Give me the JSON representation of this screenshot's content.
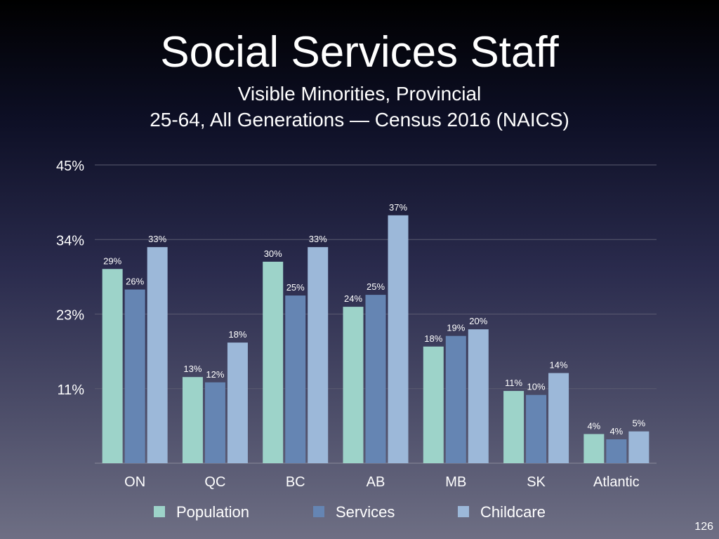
{
  "slide_number": "126",
  "chart_data": {
    "type": "bar",
    "title": "Social Services Staff",
    "subtitle_lines": [
      "Visible Minorities, Provincial",
      "25-64, All Generations — Census 2016 (NAICS)"
    ],
    "xlabel": "",
    "ylabel": "",
    "ylim": [
      0,
      45
    ],
    "yticks": [
      11.25,
      22.5,
      33.75,
      45
    ],
    "ytick_labels": [
      "11%",
      "23%",
      "34%",
      "45%"
    ],
    "grid": true,
    "legend_position": "bottom",
    "categories": [
      "ON",
      "QC",
      "BC",
      "AB",
      "MB",
      "SK",
      "Atlantic"
    ],
    "series": [
      {
        "name": "Population",
        "color": "#9dd3c9",
        "values": [
          29.3,
          13.0,
          30.4,
          23.6,
          17.6,
          10.9,
          4.4
        ],
        "labels": [
          "29%",
          "13%",
          "30%",
          "24%",
          "18%",
          "11%",
          "4%"
        ]
      },
      {
        "name": "Services",
        "color": "#6585b3",
        "values": [
          26.2,
          12.2,
          25.3,
          25.4,
          19.2,
          10.3,
          3.6
        ],
        "labels": [
          "26%",
          "12%",
          "25%",
          "25%",
          "19%",
          "10%",
          "4%"
        ]
      },
      {
        "name": "Childcare",
        "color": "#9cb8d9",
        "values": [
          32.6,
          18.2,
          32.6,
          37.4,
          20.2,
          13.6,
          4.8
        ],
        "labels": [
          "33%",
          "18%",
          "33%",
          "37%",
          "20%",
          "14%",
          "5%"
        ]
      }
    ]
  }
}
